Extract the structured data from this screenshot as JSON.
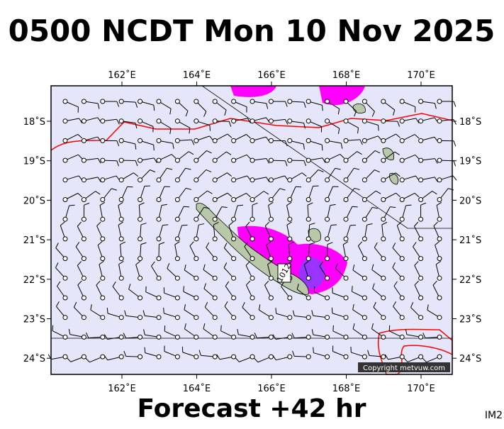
{
  "title": "0500 NCDT Mon 10 Nov 2025",
  "footer": "Forecast +42 hr",
  "image_id": "IM2",
  "map": {
    "lon_labels": [
      "162˚E",
      "164˚E",
      "166˚E",
      "168˚E",
      "170˚E"
    ],
    "lat_labels": [
      "18˚S",
      "19˚S",
      "20˚S",
      "21˚S",
      "22˚S",
      "23˚S",
      "24˚S"
    ],
    "isobar_label": "1012",
    "copyright": "Copyright metvuw.com"
  }
}
